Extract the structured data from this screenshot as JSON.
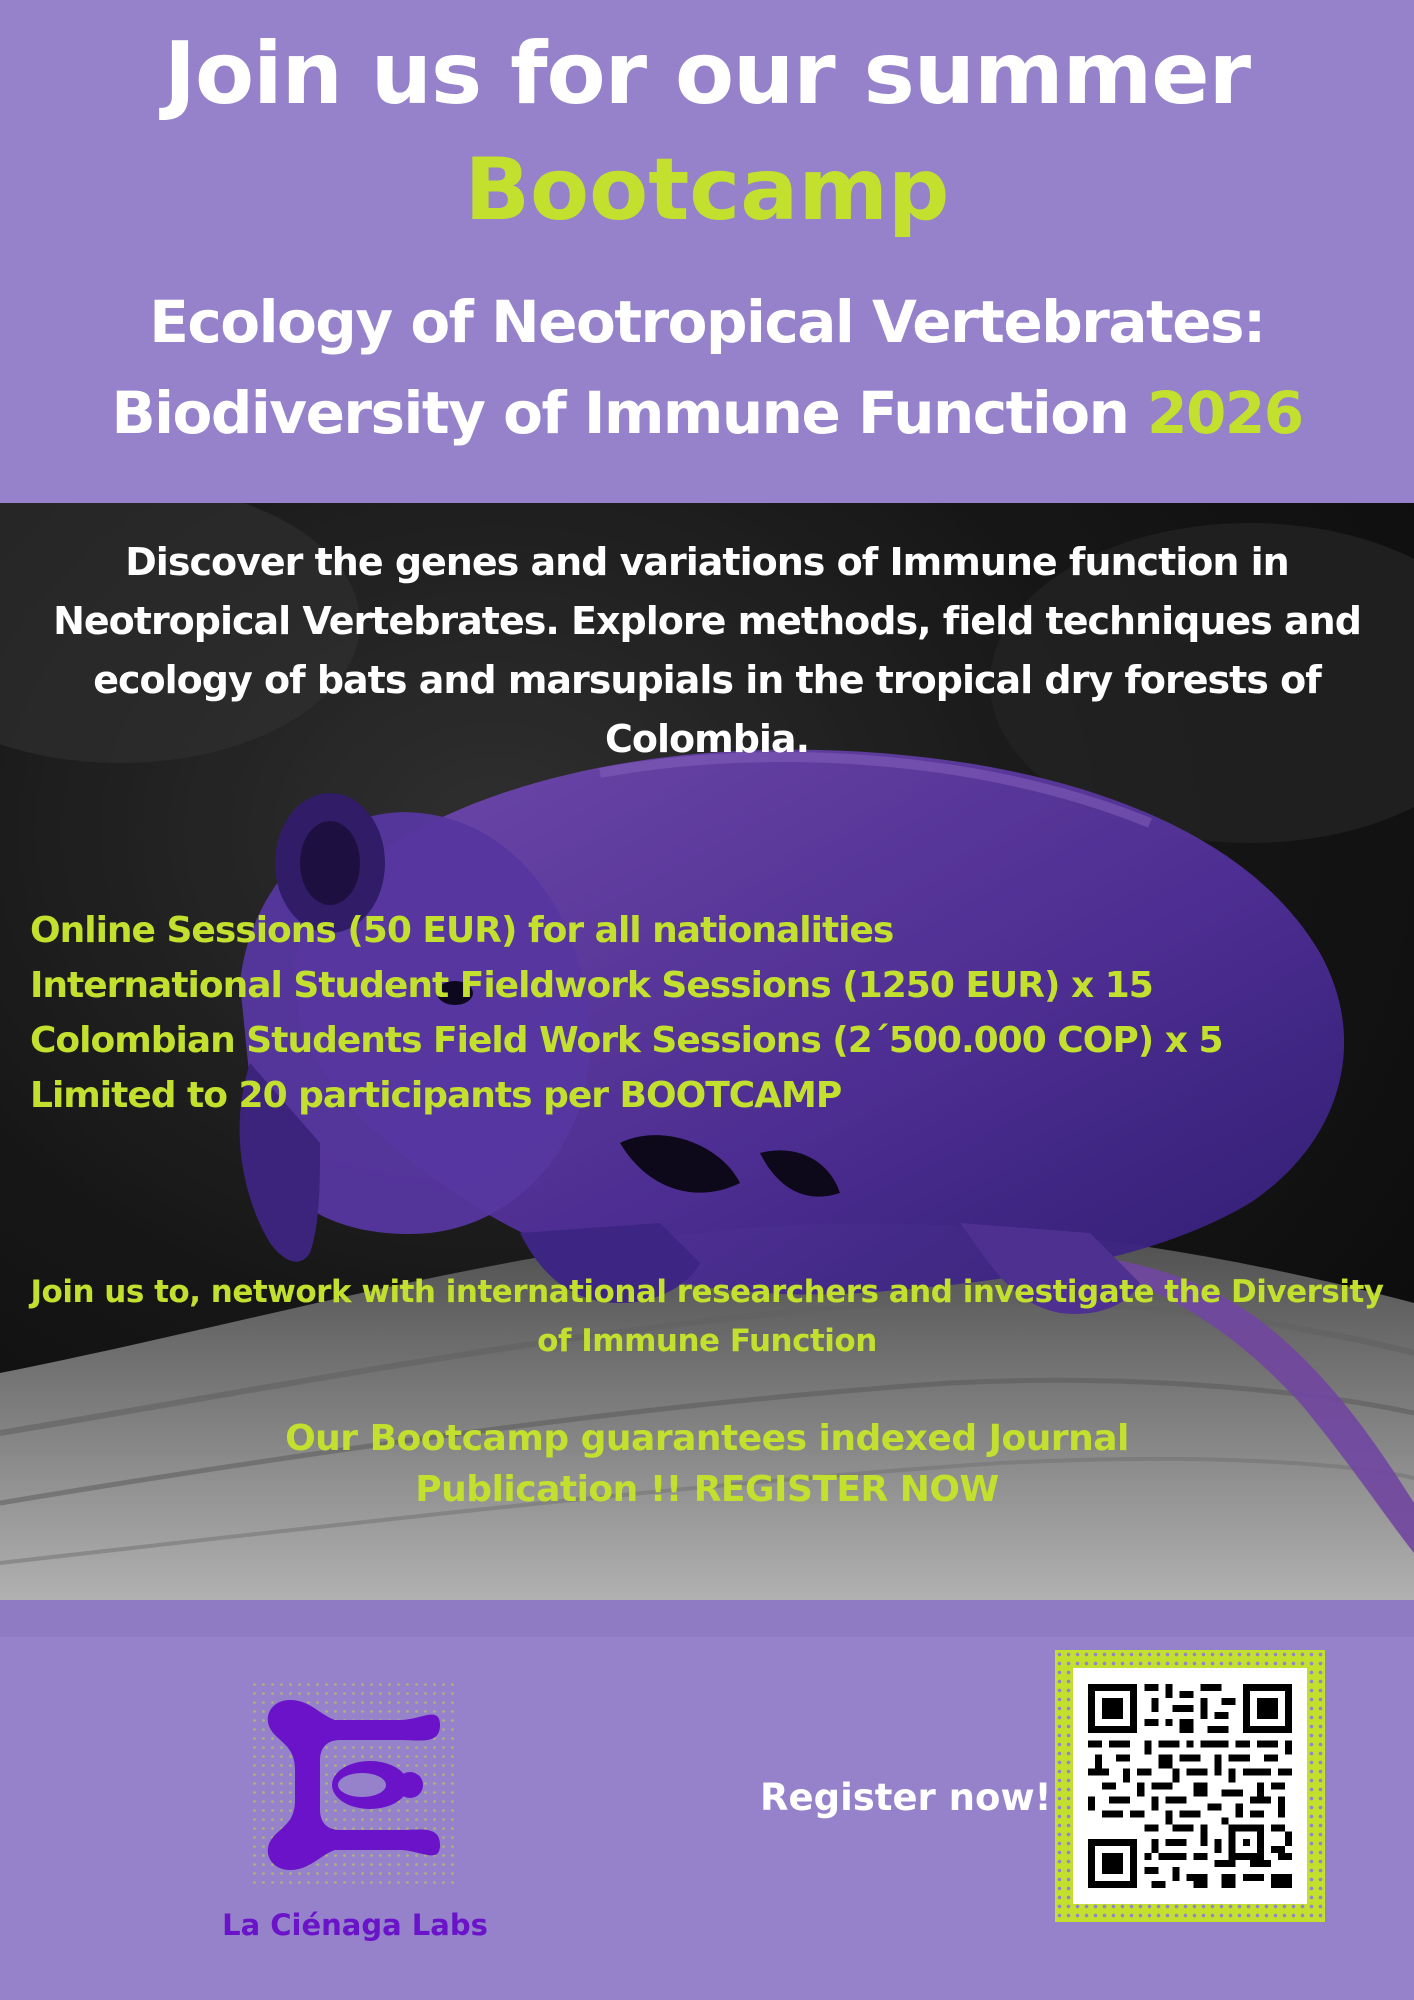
{
  "header": {
    "line1": "Join us for our summer",
    "line2": "Bootcamp",
    "line3": "Ecology of Neotropical Vertebrates:",
    "line4_main": "Biodiversity of Immune Function ",
    "line4_year": "2026"
  },
  "intro": "Discover the genes and variations of Immune function in Neotropical Vertebrates. Explore methods, field techniques and ecology of bats and marsupials in the tropical dry forests of Colombia.",
  "sessions": [
    "Online Sessions (50 EUR)  for all nationalities",
    "International Student Fieldwork Sessions (1250 EUR)  x 15",
    "Colombian Students Field Work Sessions (2´500.000 COP) x 5",
    "Limited to 20 participants per BOOTCAMP"
  ],
  "network": "Join us to, network with international  researchers and  investigate the Diversity of Immune Function",
  "guarantee_line1": "Our Bootcamp guarantees indexed Journal",
  "guarantee_line2": "Publication  !!  REGISTER NOW",
  "footer": {
    "logo_name": "La Ciénaga Labs",
    "register_label": "Register now!"
  },
  "colors": {
    "background": "#9582cb",
    "accent_green": "#c2e02d",
    "logo_purple": "#6a13c8",
    "photo_tint": "#7a52c8"
  },
  "icons": {
    "logo": "la-cienaga-labs-logo",
    "qr": "qr-code",
    "photo": "marsupial-photo"
  }
}
